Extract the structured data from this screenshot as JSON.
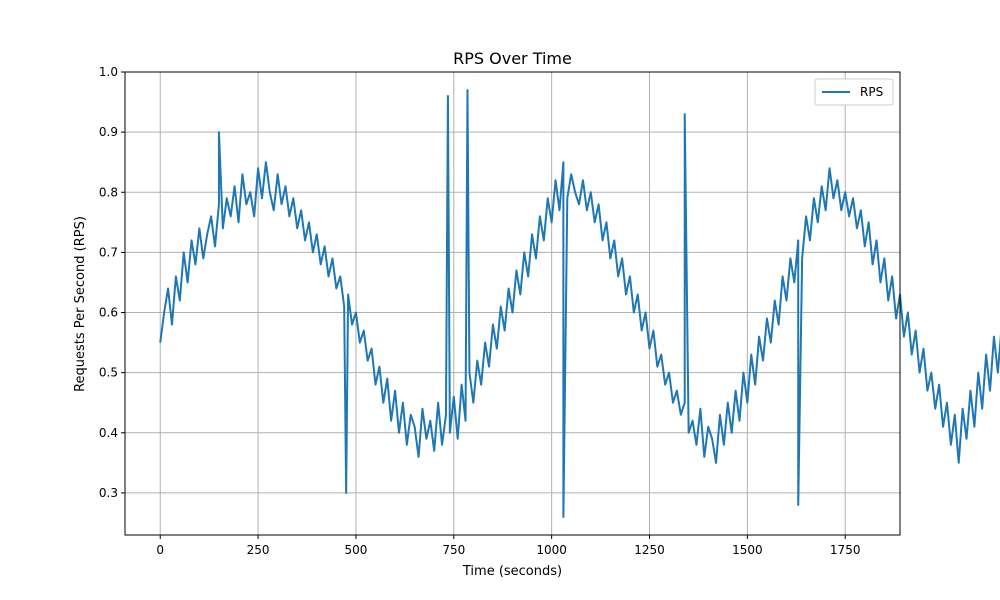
{
  "chart_data": {
    "type": "line",
    "title": "RPS Over Time",
    "xlabel": "Time (seconds)",
    "ylabel": "Requests Per Second (RPS)",
    "xlim": [
      -90,
      1890
    ],
    "ylim": [
      0.23,
      1.0
    ],
    "xticks": [
      0,
      250,
      500,
      750,
      1000,
      1250,
      1500,
      1750
    ],
    "yticks": [
      0.3,
      0.4,
      0.5,
      0.6,
      0.7,
      0.8,
      0.9,
      1.0
    ],
    "xtick_labels": [
      "0",
      "250",
      "500",
      "750",
      "1000",
      "1250",
      "1500",
      "1750"
    ],
    "ytick_labels": [
      "0.3",
      "0.4",
      "0.5",
      "0.6",
      "0.7",
      "0.8",
      "0.9",
      "1.0"
    ],
    "grid": true,
    "legend_position": "top-right",
    "series_color": "#1f77b4",
    "x_start": 0,
    "x_step": 10,
    "series": [
      {
        "name": "RPS",
        "values": [
          0.55,
          0.6,
          0.64,
          0.58,
          0.66,
          0.62,
          0.7,
          0.65,
          0.72,
          0.68,
          0.74,
          0.69,
          0.73,
          0.76,
          0.71,
          0.78,
          0.74,
          0.79,
          0.76,
          0.81,
          0.75,
          0.83,
          0.78,
          0.8,
          0.76,
          0.84,
          0.79,
          0.85,
          0.8,
          0.77,
          0.83,
          0.78,
          0.81,
          0.76,
          0.79,
          0.74,
          0.77,
          0.72,
          0.75,
          0.7,
          0.73,
          0.68,
          0.71,
          0.66,
          0.69,
          0.64,
          0.66,
          0.61,
          0.63,
          0.58,
          0.6,
          0.55,
          0.57,
          0.52,
          0.54,
          0.48,
          0.51,
          0.45,
          0.49,
          0.42,
          0.47,
          0.4,
          0.45,
          0.38,
          0.43,
          0.41,
          0.36,
          0.44,
          0.39,
          0.42,
          0.37,
          0.45,
          0.38,
          0.43,
          0.4,
          0.46,
          0.39,
          0.48,
          0.42,
          0.5,
          0.45,
          0.52,
          0.48,
          0.55,
          0.51,
          0.58,
          0.54,
          0.61,
          0.57,
          0.64,
          0.6,
          0.67,
          0.63,
          0.7,
          0.66,
          0.73,
          0.69,
          0.76,
          0.72,
          0.79,
          0.75,
          0.82,
          0.77,
          0.85,
          0.79,
          0.83,
          0.8,
          0.78,
          0.82,
          0.77,
          0.8,
          0.75,
          0.78,
          0.72,
          0.75,
          0.69,
          0.72,
          0.66,
          0.69,
          0.63,
          0.66,
          0.6,
          0.63,
          0.57,
          0.6,
          0.54,
          0.57,
          0.51,
          0.53,
          0.48,
          0.5,
          0.45,
          0.47,
          0.43,
          0.45,
          0.4,
          0.42,
          0.38,
          0.44,
          0.36,
          0.41,
          0.39,
          0.35,
          0.43,
          0.38,
          0.45,
          0.4,
          0.47,
          0.42,
          0.5,
          0.45,
          0.53,
          0.48,
          0.56,
          0.52,
          0.59,
          0.55,
          0.62,
          0.58,
          0.66,
          0.62,
          0.69,
          0.65,
          0.72,
          0.69,
          0.76,
          0.72,
          0.79,
          0.75,
          0.81,
          0.77,
          0.84,
          0.79,
          0.82,
          0.77,
          0.8,
          0.76,
          0.79,
          0.74,
          0.77,
          0.71,
          0.75,
          0.68,
          0.72,
          0.65,
          0.69,
          0.62,
          0.66,
          0.59,
          0.63,
          0.56,
          0.6,
          0.53,
          0.57,
          0.5,
          0.54,
          0.47,
          0.5,
          0.44,
          0.48,
          0.41,
          0.45,
          0.38,
          0.43,
          0.35,
          0.44,
          0.39,
          0.47,
          0.41,
          0.5,
          0.44,
          0.53,
          0.47,
          0.56,
          0.5,
          0.58,
          0.53,
          0.6,
          0.56,
          0.63,
          0.59,
          0.57,
          0.62
        ]
      }
    ],
    "spikes_high": [
      {
        "x": 150,
        "y": 0.9
      },
      {
        "x": 735,
        "y": 0.96
      },
      {
        "x": 785,
        "y": 0.97
      },
      {
        "x": 1340,
        "y": 0.93
      }
    ],
    "spikes_low": [
      {
        "x": 475,
        "y": 0.3
      },
      {
        "x": 1030,
        "y": 0.26
      },
      {
        "x": 1630,
        "y": 0.28
      }
    ]
  }
}
